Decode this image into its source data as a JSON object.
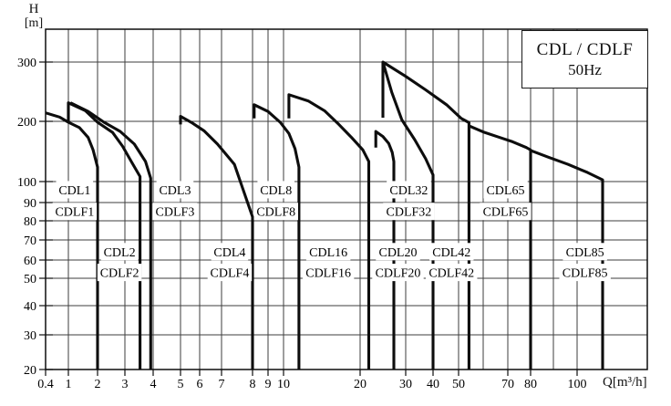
{
  "title_box": {
    "line1": "CDL / CDLF",
    "line2": "50Hz"
  },
  "axes": {
    "y_title_line1": "H",
    "y_title_line2": "[m]",
    "x_title": "Q[m³/h]"
  },
  "chart_data": {
    "type": "line",
    "title": "CDL / CDLF 50Hz pump family coverage chart",
    "legend_position": "top-right-box",
    "grid": true,
    "x_axis": {
      "label": "Q [m³/h]",
      "scale": "log",
      "range": [
        0.4,
        130
      ],
      "ticks": [
        {
          "v": 0.4,
          "label": "0.4"
        },
        {
          "v": 1,
          "label": "1"
        },
        {
          "v": 2,
          "label": "2"
        },
        {
          "v": 3,
          "label": "3"
        },
        {
          "v": 4,
          "label": "4"
        },
        {
          "v": 5,
          "label": "5"
        },
        {
          "v": 6,
          "label": "6"
        },
        {
          "v": 7,
          "label": "7"
        },
        {
          "v": 8,
          "label": "8"
        },
        {
          "v": 9,
          "label": "9"
        },
        {
          "v": 10,
          "label": "10"
        },
        {
          "v": 20,
          "label": "20"
        },
        {
          "v": 30,
          "label": "30"
        },
        {
          "v": 40,
          "label": "40"
        },
        {
          "v": 50,
          "label": "50"
        },
        {
          "v": 60,
          "label": ""
        },
        {
          "v": 70,
          "label": "70"
        },
        {
          "v": 80,
          "label": "80"
        },
        {
          "v": 90,
          "label": ""
        },
        {
          "v": 100,
          "label": "100"
        }
      ]
    },
    "y_axis": {
      "label": "H [m]",
      "scale": "log",
      "range": [
        20,
        370
      ],
      "ticks": [
        {
          "v": 300,
          "label": "300"
        },
        {
          "v": 200,
          "label": "200"
        },
        {
          "v": 100,
          "label": "100"
        },
        {
          "v": 90,
          "label": "90"
        },
        {
          "v": 80,
          "label": "80"
        },
        {
          "v": 70,
          "label": "70"
        },
        {
          "v": 60,
          "label": "60"
        },
        {
          "v": 50,
          "label": "50"
        },
        {
          "v": 40,
          "label": "40"
        },
        {
          "v": 30,
          "label": "30"
        },
        {
          "v": 20,
          "label": "20"
        }
      ]
    },
    "series": [
      {
        "name": "CDL1 / CDLF1",
        "id": "cdl1",
        "points": [
          [
            0.4,
            212
          ],
          [
            0.7,
            206
          ],
          [
            1,
            198
          ],
          [
            1.3,
            186
          ],
          [
            1.6,
            166
          ],
          [
            1.8,
            144
          ],
          [
            2,
            118
          ],
          [
            2,
            20
          ]
        ]
      },
      {
        "name": "CDL2 / CDLF2",
        "id": "cdl2",
        "points": [
          [
            1,
            196
          ],
          [
            1,
            227
          ],
          [
            1.5,
            215
          ],
          [
            2,
            198
          ],
          [
            2.5,
            176
          ],
          [
            2.9,
            150
          ],
          [
            3.2,
            126
          ],
          [
            3.5,
            106
          ],
          [
            3.5,
            20
          ]
        ]
      },
      {
        "name": "CDL3 / CDLF3",
        "id": "cdl3",
        "points": [
          [
            1.05,
            227
          ],
          [
            1.6,
            214
          ],
          [
            2.2,
            198
          ],
          [
            2.8,
            178
          ],
          [
            3.3,
            154
          ],
          [
            3.7,
            126
          ],
          [
            3.9,
            104
          ],
          [
            3.9,
            20
          ]
        ]
      },
      {
        "name": "CDL4 / CDLF4",
        "id": "cdl4",
        "points": [
          [
            5,
            193
          ],
          [
            5,
            207
          ],
          [
            5.6,
            196
          ],
          [
            6.2,
            179
          ],
          [
            6.8,
            154
          ],
          [
            7.4,
            122
          ],
          [
            8,
            82
          ],
          [
            8,
            20
          ]
        ]
      },
      {
        "name": "CDL8 / CDLF8",
        "id": "cdl8",
        "points": [
          [
            8.1,
            204
          ],
          [
            8.1,
            224
          ],
          [
            9,
            214
          ],
          [
            9.8,
            197
          ],
          [
            10.5,
            174
          ],
          [
            11.1,
            146
          ],
          [
            11.5,
            118
          ],
          [
            11.5,
            20
          ]
        ]
      },
      {
        "name": "CDL16 / CDLF16",
        "id": "cdl16",
        "points": [
          [
            10.5,
            204
          ],
          [
            10.5,
            240
          ],
          [
            12.5,
            230
          ],
          [
            14.5,
            215
          ],
          [
            16.5,
            193
          ],
          [
            18.5,
            166
          ],
          [
            20.5,
            144
          ],
          [
            21.6,
            126
          ],
          [
            21.6,
            20
          ]
        ]
      },
      {
        "name": "CDL20 / CDLF20",
        "id": "cdl20",
        "points": [
          [
            23,
            148
          ],
          [
            23,
            178
          ],
          [
            24.5,
            168
          ],
          [
            25.8,
            155
          ],
          [
            26.6,
            140
          ],
          [
            27,
            126
          ],
          [
            27,
            20
          ]
        ]
      },
      {
        "name": "CDL32 / CDLF32",
        "id": "cdl32",
        "points": [
          [
            24.5,
            205
          ],
          [
            24.5,
            300
          ],
          [
            26.5,
            244
          ],
          [
            29,
            202
          ],
          [
            33,
            162
          ],
          [
            37,
            130
          ],
          [
            40,
            108
          ],
          [
            40,
            20
          ]
        ]
      },
      {
        "name": "CDL42 / CDLF42",
        "id": "cdl42",
        "points": [
          [
            24.5,
            300
          ],
          [
            30,
            272
          ],
          [
            37,
            248
          ],
          [
            45,
            224
          ],
          [
            51,
            204
          ],
          [
            54,
            197
          ],
          [
            54,
            20
          ]
        ]
      },
      {
        "name": "CDL65 / CDLF65",
        "id": "cdl65",
        "points": [
          [
            54,
            190
          ],
          [
            60,
            177
          ],
          [
            66,
            167
          ],
          [
            72,
            158
          ],
          [
            78,
            148
          ],
          [
            80,
            144
          ],
          [
            80,
            20
          ]
        ]
      },
      {
        "name": "CDL85 / CDLF85",
        "id": "cdl85",
        "points": [
          [
            80,
            143
          ],
          [
            88,
            132
          ],
          [
            96,
            122
          ],
          [
            104,
            111
          ],
          [
            110,
            102
          ],
          [
            110,
            20
          ]
        ]
      }
    ],
    "region_labels": [
      {
        "id": "cdl1",
        "top": "CDL1",
        "bottom": "CDLF1",
        "q": 1.16,
        "h_top": 96,
        "h_bottom": 85
      },
      {
        "id": "cdl2",
        "top": "CDL2",
        "bottom": "CDLF2",
        "q": 2.77,
        "h_top": 64,
        "h_bottom": 53
      },
      {
        "id": "cdl3",
        "top": "CDL3",
        "bottom": "CDLF3",
        "q": 4.78,
        "h_top": 96,
        "h_bottom": 85
      },
      {
        "id": "cdl4",
        "top": "CDL4",
        "bottom": "CDLF4",
        "q": 7.25,
        "h_top": 64,
        "h_bottom": 53
      },
      {
        "id": "cdl8",
        "top": "CDL8",
        "bottom": "CDLF8",
        "q": 9.5,
        "h_top": 96,
        "h_bottom": 85
      },
      {
        "id": "cdl16",
        "top": "CDL16",
        "bottom": "CDLF16",
        "q": 15,
        "h_top": 64,
        "h_bottom": 53
      },
      {
        "id": "cdl32",
        "top": "CDL32",
        "bottom": "CDLF32",
        "q": 31,
        "h_top": 96,
        "h_bottom": 85
      },
      {
        "id": "cdl20",
        "top": "CDL20",
        "bottom": "CDLF20",
        "q": 28,
        "h_top": 64,
        "h_bottom": 53
      },
      {
        "id": "cdl42",
        "top": "CDL42",
        "bottom": "CDLF42",
        "q": 47,
        "h_top": 64,
        "h_bottom": 53
      },
      {
        "id": "cdl65",
        "top": "CDL65",
        "bottom": "CDLF65",
        "q": 69,
        "h_top": 96,
        "h_bottom": 85
      },
      {
        "id": "cdl85",
        "top": "CDL85",
        "bottom": "CDLF85",
        "q": 103,
        "h_top": 64,
        "h_bottom": 53
      }
    ]
  }
}
